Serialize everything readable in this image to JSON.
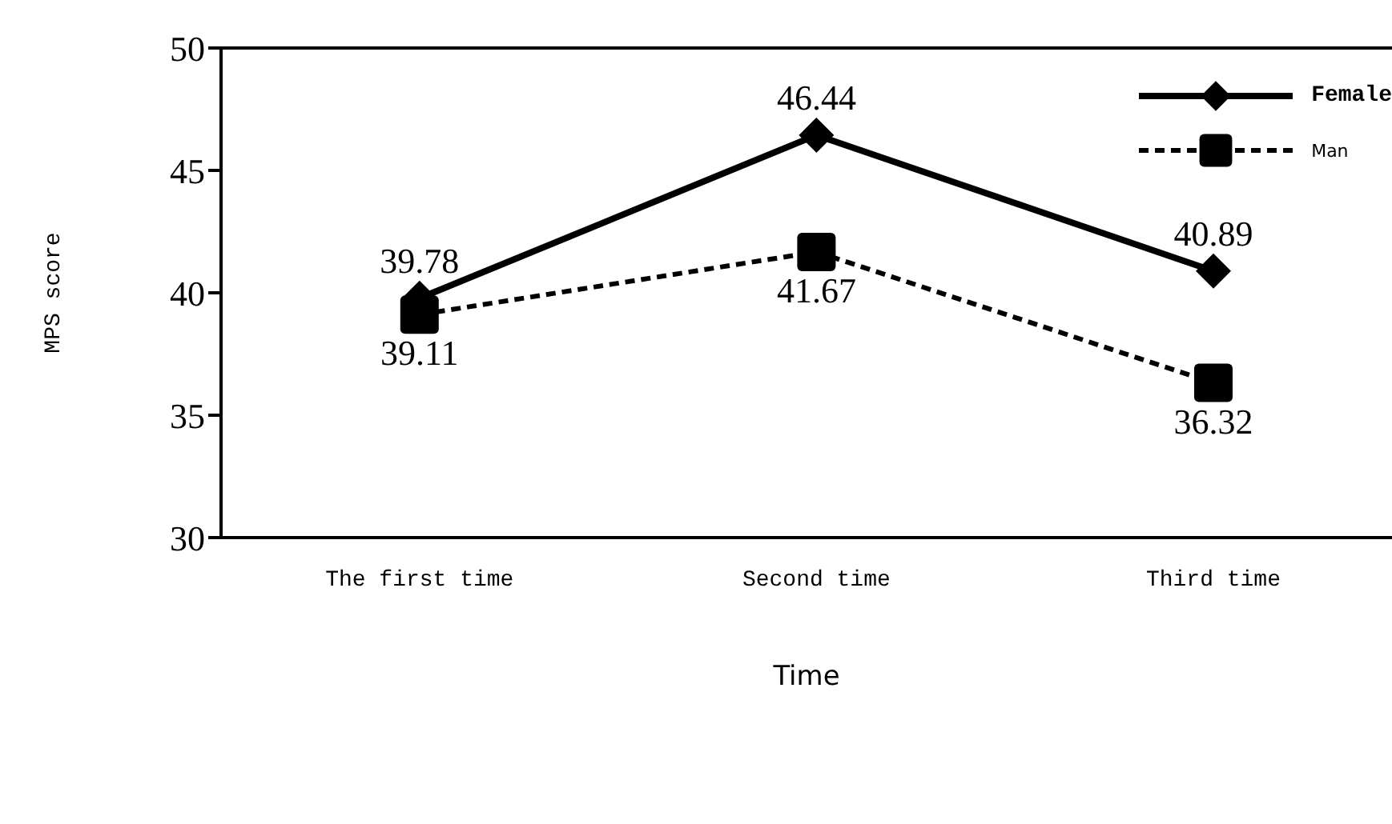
{
  "chart_data": {
    "type": "line",
    "xlabel": "Time",
    "ylabel": "MPS score",
    "categories": [
      "The first time",
      "Second time",
      "Third time"
    ],
    "series": [
      {
        "name": "Female",
        "color": "#000000",
        "values": [
          39.78,
          46.44,
          40.89
        ],
        "marker": "diamond",
        "line_style": "solid"
      },
      {
        "name": "Man",
        "color": "#000000",
        "values": [
          39.11,
          41.67,
          36.32
        ],
        "marker": "square",
        "line_style": "dashed"
      }
    ],
    "ylim": [
      30,
      50
    ],
    "yticks": [
      30,
      35,
      40,
      45,
      50
    ],
    "grid": false,
    "legend": "top right",
    "data_labels": true
  }
}
